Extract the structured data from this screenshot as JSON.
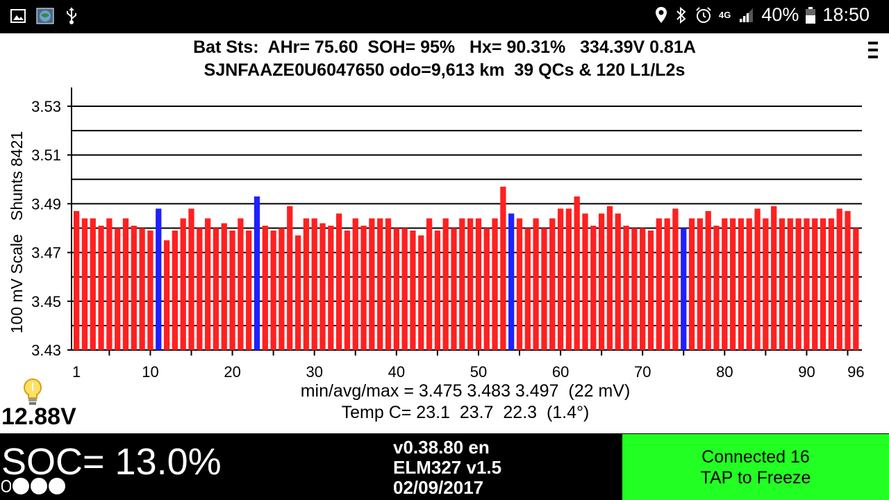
{
  "status_bar": {
    "left_icons": [
      "image-icon",
      "globe-icon",
      "usb-icon"
    ],
    "right_icons": [
      "location-icon",
      "bluetooth-icon",
      "alarm-icon",
      "network-4g-icon",
      "signal-icon"
    ],
    "network": "4G",
    "battery": "40%",
    "time": "18:50"
  },
  "header": {
    "line1": "Bat Sts:  AHr= 75.60  SOH= 95%   Hx= 90.31%   334.39V 0.81A",
    "line2": "SJNFAAZE0U6047650 odo=9,613 km  39 QCs & 120 L1/L2s"
  },
  "chart_data": {
    "type": "bar",
    "ylabel": "100 mV Scale   Shunts 8421",
    "ylim": [
      3.43,
      3.53
    ],
    "yticks": [
      "3.43",
      "3.45",
      "3.47",
      "3.49",
      "3.51",
      "3.53"
    ],
    "grid": true,
    "xticks": [
      "1",
      "10",
      "20",
      "30",
      "40",
      "50",
      "60",
      "70",
      "80",
      "90",
      "96"
    ],
    "x": [
      1,
      2,
      3,
      4,
      5,
      6,
      7,
      8,
      9,
      10,
      11,
      12,
      13,
      14,
      15,
      16,
      17,
      18,
      19,
      20,
      21,
      22,
      23,
      24,
      25,
      26,
      27,
      28,
      29,
      30,
      31,
      32,
      33,
      34,
      35,
      36,
      37,
      38,
      39,
      40,
      41,
      42,
      43,
      44,
      45,
      46,
      47,
      48,
      49,
      50,
      51,
      52,
      53,
      54,
      55,
      56,
      57,
      58,
      59,
      60,
      61,
      62,
      63,
      64,
      65,
      66,
      67,
      68,
      69,
      70,
      71,
      72,
      73,
      74,
      75,
      76,
      77,
      78,
      79,
      80,
      81,
      82,
      83,
      84,
      85,
      86,
      87,
      88,
      89,
      90,
      91,
      92,
      93,
      94,
      95,
      96
    ],
    "values": [
      3.487,
      3.484,
      3.484,
      3.481,
      3.484,
      3.48,
      3.484,
      3.481,
      3.48,
      3.479,
      3.488,
      3.475,
      3.479,
      3.484,
      3.488,
      3.48,
      3.484,
      3.48,
      3.482,
      3.479,
      3.484,
      3.479,
      3.493,
      3.481,
      3.479,
      3.48,
      3.489,
      3.477,
      3.484,
      3.484,
      3.482,
      3.481,
      3.486,
      3.479,
      3.484,
      3.481,
      3.484,
      3.484,
      3.484,
      3.48,
      3.48,
      3.479,
      3.477,
      3.484,
      3.479,
      3.484,
      3.48,
      3.484,
      3.484,
      3.484,
      3.48,
      3.484,
      3.497,
      3.486,
      3.484,
      3.48,
      3.484,
      3.48,
      3.484,
      3.488,
      3.488,
      3.493,
      3.486,
      3.481,
      3.486,
      3.489,
      3.486,
      3.481,
      3.48,
      3.48,
      3.479,
      3.484,
      3.484,
      3.488,
      3.48,
      3.484,
      3.484,
      3.487,
      3.481,
      3.484,
      3.484,
      3.484,
      3.484,
      3.488,
      3.484,
      3.489,
      3.484,
      3.484,
      3.484,
      3.484,
      3.484,
      3.484,
      3.484,
      3.488,
      3.487,
      3.48
    ],
    "shunted": [
      11,
      23,
      54,
      75
    ],
    "colors": {
      "normal": "#ff2020",
      "shunted": "#2020ff"
    }
  },
  "stats": {
    "minavgmax": "min/avg/max = 3.475 3.483 3.497  (22 mV)",
    "temp": "Temp C= 23.1  23.7  22.3  (1.4°)"
  },
  "aux_battery": {
    "icon": "lightbulb-icon",
    "voltage": "12.88V"
  },
  "soc": {
    "label": "SOC= 13.0%",
    "dots_prefix": "0"
  },
  "version": {
    "app": "v0.38.80 en",
    "adapter": "ELM327 v1.5",
    "date": "02/09/2017"
  },
  "connection": {
    "line1": "Connected 16",
    "line2": "TAP to Freeze",
    "color": "#22ff22"
  }
}
